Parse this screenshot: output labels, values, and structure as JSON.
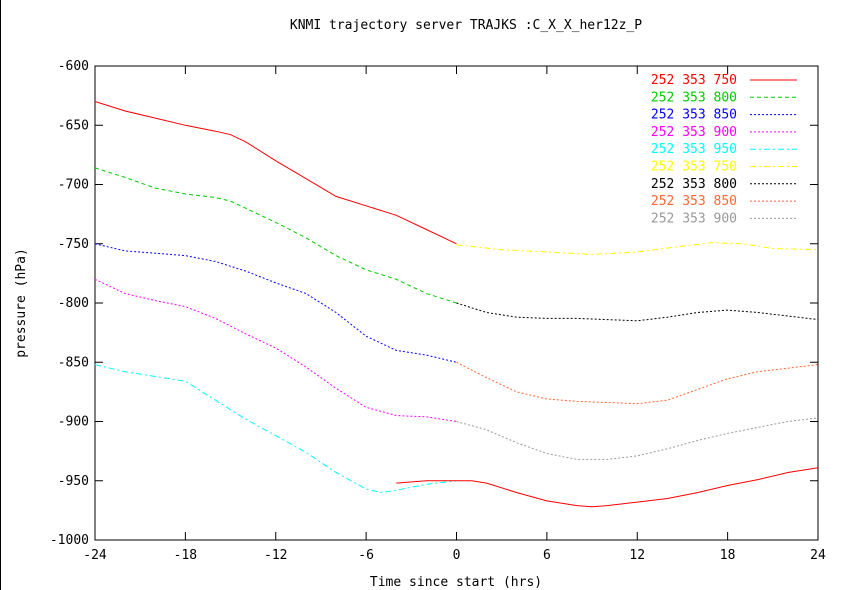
{
  "chart_data": {
    "type": "line",
    "title": "KNMI trajectory server TRAJKS :C_X_X_her12z_P",
    "xlabel": "Time since start (hrs)",
    "ylabel": "pressure (hPa)",
    "xlim": [
      -24,
      24
    ],
    "ylim": [
      -1000,
      -600
    ],
    "xticks": [
      -24,
      -18,
      -12,
      -6,
      0,
      6,
      12,
      18,
      24
    ],
    "yticks": [
      -600,
      -650,
      -700,
      -750,
      -800,
      -850,
      -900,
      -950,
      -1000
    ],
    "grid": false,
    "legend_position": "top-right",
    "series": [
      {
        "name": "252  353  750",
        "color": "#ff0000",
        "dash": "solid",
        "x": [
          -24,
          -22,
          -20,
          -18,
          -16,
          -15,
          -14,
          -12,
          -10,
          -8,
          -6,
          -4,
          -2,
          0
        ],
        "y": [
          -630,
          -638,
          -644,
          -650,
          -655,
          -658,
          -664,
          -680,
          -695,
          -710,
          -718,
          -726,
          -738,
          -750
        ]
      },
      {
        "name": "252  353  800",
        "color": "#00cc00",
        "dash": "dashed",
        "x": [
          -24,
          -22,
          -20,
          -18,
          -16,
          -15,
          -14,
          -12,
          -10,
          -8,
          -6,
          -4,
          -2,
          0
        ],
        "y": [
          -686,
          -694,
          -703,
          -708,
          -711,
          -714,
          -720,
          -732,
          -745,
          -760,
          -772,
          -780,
          -792,
          -800
        ]
      },
      {
        "name": "252  353  850",
        "color": "#0000ff",
        "dash": "dotted",
        "x": [
          -24,
          -22,
          -20,
          -18,
          -16,
          -14,
          -12,
          -10,
          -8,
          -6,
          -4,
          -2,
          0
        ],
        "y": [
          -750,
          -756,
          -758,
          -760,
          -765,
          -773,
          -783,
          -792,
          -808,
          -828,
          -840,
          -844,
          -850
        ]
      },
      {
        "name": "252  353  900",
        "color": "#ff00ff",
        "dash": "dotted",
        "x": [
          -24,
          -22,
          -20,
          -18,
          -16,
          -14,
          -12,
          -10,
          -8,
          -6,
          -4,
          -2,
          0
        ],
        "y": [
          -780,
          -792,
          -798,
          -803,
          -813,
          -826,
          -838,
          -854,
          -872,
          -888,
          -895,
          -896,
          -900
        ]
      },
      {
        "name": "252  353  950",
        "color": "#00ffff",
        "dash": "dashdot",
        "x": [
          -24,
          -22,
          -20,
          -18,
          -16,
          -14,
          -12,
          -10,
          -8,
          -6,
          -5,
          -4,
          -2,
          0
        ],
        "y": [
          -852,
          -858,
          -862,
          -866,
          -882,
          -898,
          -912,
          -926,
          -943,
          -957,
          -960,
          -958,
          -953,
          -950
        ]
      },
      {
        "name": "252  353  750",
        "color": "#ffff00",
        "dash": "dashdot",
        "x": [
          0,
          3,
          6,
          9,
          12,
          15,
          17,
          19,
          21,
          24
        ],
        "y": [
          -751,
          -755,
          -757,
          -759,
          -757,
          -752,
          -749,
          -750,
          -754,
          -755
        ]
      },
      {
        "name": "252  353  800",
        "color": "#000000",
        "dash": "dotted",
        "x": [
          0,
          2,
          4,
          6,
          8,
          10,
          12,
          14,
          16,
          18,
          20,
          22,
          24
        ],
        "y": [
          -800,
          -808,
          -812,
          -813,
          -813,
          -814,
          -815,
          -812,
          -808,
          -806,
          -808,
          -811,
          -814
        ]
      },
      {
        "name": "252  353  850",
        "color": "#ff6633",
        "dash": "dotted",
        "x": [
          0,
          2,
          4,
          6,
          8,
          10,
          12,
          14,
          16,
          18,
          20,
          22,
          24
        ],
        "y": [
          -850,
          -863,
          -875,
          -881,
          -883,
          -884,
          -885,
          -882,
          -873,
          -864,
          -858,
          -855,
          -852
        ]
      },
      {
        "name": "252  353  900",
        "color": "#999999",
        "dash": "dotted",
        "x": [
          0,
          2,
          4,
          6,
          8,
          10,
          12,
          14,
          16,
          18,
          20,
          22,
          24
        ],
        "y": [
          -900,
          -907,
          -918,
          -927,
          -932,
          -932,
          -929,
          -923,
          -916,
          -910,
          -905,
          -900,
          -897
        ]
      },
      {
        "name": "",
        "color": "#ff0000",
        "dash": "solid",
        "x": [
          -4,
          -2,
          0,
          1,
          2,
          4,
          6,
          8,
          9,
          10,
          12,
          14,
          16,
          18,
          20,
          22,
          24
        ],
        "y": [
          -952,
          -950,
          -950,
          -950,
          -952,
          -960,
          -967,
          -971,
          -972,
          -971,
          -968,
          -965,
          -960,
          -954,
          -949,
          -943,
          -939
        ]
      }
    ]
  }
}
